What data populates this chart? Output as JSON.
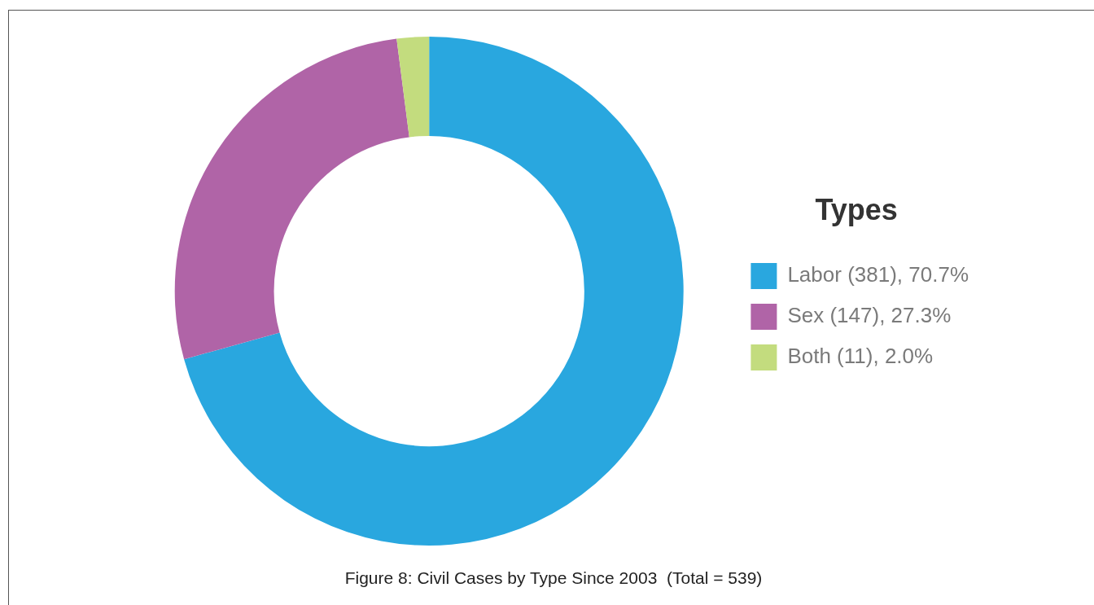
{
  "chart_data": {
    "type": "donut",
    "title": "Figure 8: Civil Cases by Type Since 2003  (Total = 539)",
    "legend_title": "Types",
    "categories": [
      "Labor (381), 70.7%",
      "Sex (147), 27.3%",
      "Both (11), 2.0%"
    ],
    "values": [
      381,
      147,
      11
    ],
    "colors": [
      "#29a7df",
      "#b064a7",
      "#c3dc7e"
    ],
    "legend": "right"
  }
}
